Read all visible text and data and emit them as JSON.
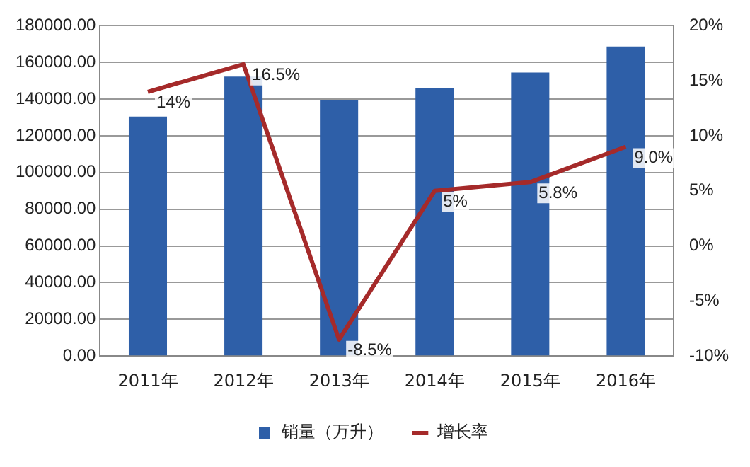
{
  "chart_data": {
    "type": "bar",
    "categories": [
      "2011年",
      "2012年",
      "2013年",
      "2014年",
      "2015年",
      "2016年"
    ],
    "series": [
      {
        "name": "销量（万升）",
        "color": "#2e5fa8",
        "values": [
          130500,
          152300,
          139600,
          146200,
          154500,
          168700
        ]
      },
      {
        "name": "增长率",
        "type": "line",
        "axis": "y2",
        "color": "#a52a2a",
        "values": [
          14,
          16.5,
          -8.5,
          5,
          5.8,
          9
        ],
        "value_labels": [
          "14%",
          "16.5%",
          "-8.5%",
          "5%",
          "5.8%",
          "9.0%"
        ]
      }
    ],
    "ylim": [
      0,
      180000
    ],
    "yticks": [
      {
        "value": 0,
        "label": "0.00"
      },
      {
        "value": 20000,
        "label": "20000.00"
      },
      {
        "value": 40000,
        "label": "40000.00"
      },
      {
        "value": 60000,
        "label": "60000.00"
      },
      {
        "value": 80000,
        "label": "80000.00"
      },
      {
        "value": 100000,
        "label": "100000.00"
      },
      {
        "value": 120000,
        "label": "120000.00"
      },
      {
        "value": 140000,
        "label": "140000.00"
      },
      {
        "value": 160000,
        "label": "160000.00"
      },
      {
        "value": 180000,
        "label": "180000.00"
      }
    ],
    "y2lim": [
      -10,
      20
    ],
    "y2ticks": [
      {
        "value": -10,
        "label": "-10%"
      },
      {
        "value": -5,
        "label": "-5%"
      },
      {
        "value": 0,
        "label": "0%"
      },
      {
        "value": 5,
        "label": "5%"
      },
      {
        "value": 10,
        "label": "10%"
      },
      {
        "value": 15,
        "label": "15%"
      },
      {
        "value": 20,
        "label": "20%"
      }
    ],
    "grid": "y",
    "legend": "bottom",
    "marker": "none",
    "line_style": "solid"
  }
}
